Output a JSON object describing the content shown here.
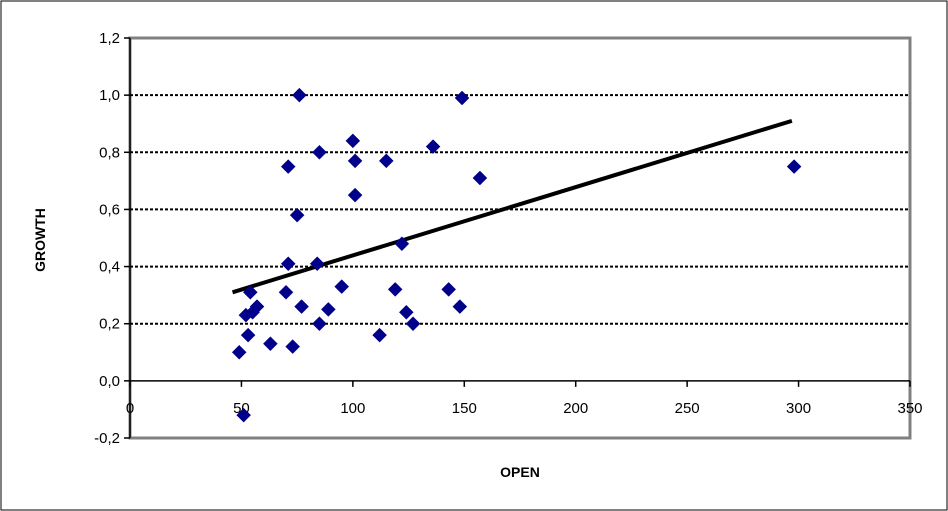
{
  "chart_data": {
    "type": "scatter",
    "title": "",
    "xlabel": "OPEN",
    "ylabel": "GROWTH",
    "xlim": [
      0,
      350
    ],
    "ylim": [
      -0.2,
      1.2
    ],
    "x_ticks": [
      0,
      50,
      100,
      150,
      200,
      250,
      300,
      350
    ],
    "x_tick_labels": [
      "0",
      "50",
      "100",
      "150",
      "200",
      "250",
      "300",
      "350"
    ],
    "y_ticks": [
      -0.2,
      0.0,
      0.2,
      0.4,
      0.6,
      0.8,
      1.0,
      1.2
    ],
    "y_tick_labels": [
      "-0,2",
      "0,0",
      "0,2",
      "0,4",
      "0,6",
      "0,8",
      "1,0",
      "1,2"
    ],
    "grid": "horizontal dashed",
    "legend": "none",
    "series": [
      {
        "marker": "diamond",
        "color": "#00008B",
        "points": [
          [
            49,
            0.1
          ],
          [
            51,
            -0.12
          ],
          [
            52,
            0.23
          ],
          [
            53,
            0.16
          ],
          [
            54,
            0.31
          ],
          [
            55,
            0.24
          ],
          [
            57,
            0.26
          ],
          [
            63,
            0.13
          ],
          [
            70,
            0.31
          ],
          [
            71,
            0.75
          ],
          [
            71,
            0.41
          ],
          [
            73,
            0.12
          ],
          [
            75,
            0.58
          ],
          [
            76,
            1.0
          ],
          [
            77,
            0.26
          ],
          [
            84,
            0.41
          ],
          [
            85,
            0.8
          ],
          [
            85,
            0.2
          ],
          [
            89,
            0.25
          ],
          [
            95,
            0.33
          ],
          [
            100,
            0.84
          ],
          [
            101,
            0.77
          ],
          [
            101,
            0.65
          ],
          [
            112,
            0.16
          ],
          [
            115,
            0.77
          ],
          [
            119,
            0.32
          ],
          [
            122,
            0.48
          ],
          [
            124,
            0.24
          ],
          [
            127,
            0.2
          ],
          [
            136,
            0.82
          ],
          [
            143,
            0.32
          ],
          [
            148,
            0.26
          ],
          [
            149,
            0.99
          ],
          [
            157,
            0.71
          ],
          [
            298,
            0.75
          ]
        ]
      }
    ],
    "trendline": {
      "type": "linear",
      "color": "#000000",
      "x": [
        46,
        297
      ],
      "y": [
        0.31,
        0.91
      ]
    }
  }
}
